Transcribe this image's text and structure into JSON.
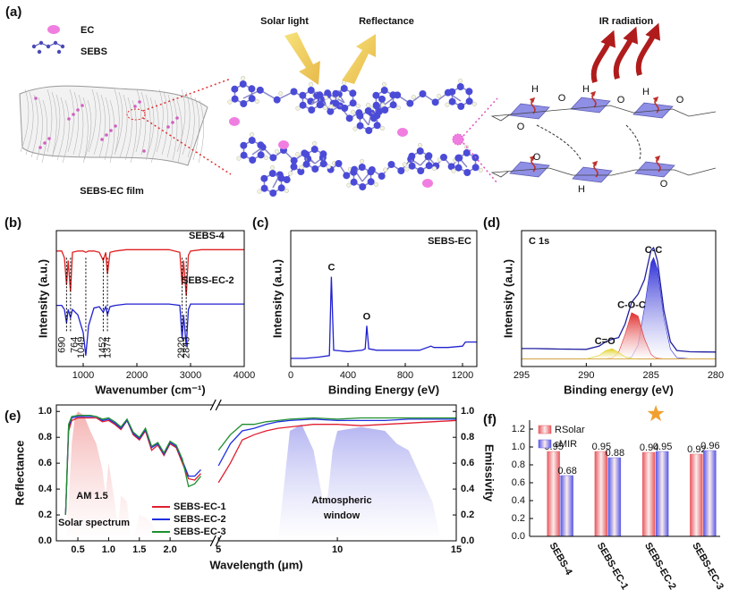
{
  "diagram": {
    "label": "(a)",
    "legend_ec": "EC",
    "legend_sebs": "SEBS",
    "film": "SEBS-EC film",
    "solar_light": "Solar light",
    "reflectance": "Reflectance",
    "ir_radiation": "IR radiation",
    "atoms": [
      "H",
      "O",
      "O",
      "H",
      "O",
      "H",
      "O",
      "O",
      "H",
      "O"
    ]
  },
  "chart_data": [
    {
      "type": "line",
      "label": "(b)",
      "xlabel": "Wavenumber (cm⁻¹)",
      "ylabel": "Intensity (a.u.)",
      "xlim": [
        500,
        4000
      ],
      "xticks": [
        1000,
        2000,
        3000,
        4000
      ],
      "ylim": [
        0,
        1
      ],
      "x": [
        500,
        600,
        650,
        690,
        720,
        764,
        800,
        900,
        1000,
        1049,
        1100,
        1200,
        1300,
        1374,
        1420,
        1452,
        1500,
        1600,
        1800,
        2000,
        2200,
        2400,
        2600,
        2800,
        2843,
        2870,
        2920,
        2960,
        3000,
        3200,
        3500,
        4000
      ],
      "series": [
        {
          "name": "SEBS-4",
          "color": "#e02020",
          "values": [
            0.85,
            0.85,
            0.8,
            0.6,
            0.78,
            0.55,
            0.84,
            0.85,
            0.85,
            0.84,
            0.85,
            0.85,
            0.84,
            0.78,
            0.84,
            0.68,
            0.84,
            0.85,
            0.86,
            0.86,
            0.86,
            0.86,
            0.86,
            0.84,
            0.6,
            0.78,
            0.52,
            0.82,
            0.85,
            0.86,
            0.86,
            0.86
          ]
        },
        {
          "name": "SEBS-EC-2",
          "color": "#2020d0",
          "values": [
            0.45,
            0.45,
            0.42,
            0.32,
            0.42,
            0.36,
            0.42,
            0.38,
            0.25,
            0.08,
            0.3,
            0.43,
            0.44,
            0.4,
            0.44,
            0.38,
            0.44,
            0.45,
            0.46,
            0.46,
            0.46,
            0.46,
            0.46,
            0.45,
            0.2,
            0.38,
            0.15,
            0.42,
            0.46,
            0.46,
            0.46,
            0.46
          ]
        }
      ],
      "peaks": [
        690,
        764,
        1049,
        1374,
        1452,
        2843,
        2920
      ]
    },
    {
      "type": "line",
      "label": "(c)",
      "annotation": "SEBS-EC",
      "xlabel": "Binding  Energy (eV)",
      "ylabel": "Intensity (a.u.)",
      "xlim": [
        0,
        1300
      ],
      "xticks": [
        0,
        400,
        800,
        1200
      ],
      "ylim": [
        0,
        1
      ],
      "x": [
        0,
        100,
        200,
        270,
        284,
        300,
        400,
        500,
        520,
        531,
        545,
        600,
        700,
        800,
        900,
        980,
        1000,
        1100,
        1200,
        1220,
        1300
      ],
      "series": [
        {
          "color": "#2020d0",
          "values": [
            0.06,
            0.06,
            0.07,
            0.08,
            0.66,
            0.12,
            0.11,
            0.12,
            0.13,
            0.3,
            0.13,
            0.12,
            0.12,
            0.12,
            0.12,
            0.15,
            0.14,
            0.14,
            0.15,
            0.18,
            0.18
          ]
        }
      ],
      "peak_labels": [
        {
          "text": "C",
          "x": 284
        },
        {
          "text": "O",
          "x": 531
        }
      ]
    },
    {
      "type": "line",
      "label": "(d)",
      "title": "C 1s",
      "xlabel": "Binding energy (eV)",
      "ylabel": "Intensity (a.u.)",
      "xlim": [
        295,
        280
      ],
      "xticks": [
        295,
        290,
        285,
        280
      ],
      "ylim": [
        -0.06,
        1
      ],
      "x": [
        295,
        294,
        293,
        292,
        291,
        290,
        289,
        288.5,
        288,
        287.5,
        287,
        286.5,
        286,
        285.5,
        285,
        284.8,
        284.5,
        284,
        283.5,
        283,
        282,
        281,
        280
      ],
      "series": [
        {
          "color": "#2020a0",
          "values": [
            0.08,
            0.08,
            0.078,
            0.076,
            0.075,
            0.074,
            0.1,
            0.133,
            0.153,
            0.166,
            0.271,
            0.44,
            0.504,
            0.618,
            0.847,
            0.867,
            0.764,
            0.378,
            0.133,
            0.065,
            0.055,
            0.054,
            0.053
          ]
        },
        {
          "name": "C-C",
          "color": "#2b2bd6",
          "fill": true,
          "values": [
            0,
            0,
            0,
            0,
            0,
            0,
            0,
            0,
            0,
            0,
            0.001,
            0.014,
            0.107,
            0.4,
            0.75,
            0.79,
            0.7,
            0.32,
            0.076,
            0.009,
            0,
            0,
            0
          ]
        },
        {
          "name": "C-O-C",
          "color": "#e03030",
          "fill": true,
          "values": [
            0,
            0,
            0,
            0,
            0,
            0,
            0,
            0.001,
            0.007,
            0.051,
            0.19,
            0.36,
            0.334,
            0.156,
            0.036,
            0.017,
            0.004,
            0,
            0,
            0,
            0,
            0,
            0
          ]
        },
        {
          "name": "C=O",
          "color": "#e0d020",
          "fill": true,
          "values": [
            0,
            0,
            0,
            0,
            0,
            0,
            0.026,
            0.064,
            0.079,
            0.049,
            0.015,
            0.002,
            0,
            0,
            0,
            0,
            0,
            0,
            0,
            0,
            0,
            0,
            0
          ]
        }
      ]
    },
    {
      "type": "line",
      "label": "(e)",
      "xlabel": "Wavelength (μm)",
      "ylabel": "Reflectance",
      "y2label": "Emissivity",
      "xlim": [
        0.15,
        15
      ],
      "xbreak": [
        2.7,
        5
      ],
      "xticks": [
        0.5,
        {
          "value": 1,
          "label": "1.0"
        },
        1.5,
        {
          "value": 2,
          "label": "2.0"
        },
        5,
        10,
        15
      ],
      "ylim": [
        0,
        1.05
      ],
      "yticks": [
        {
          "value": 0,
          "label": "0.0"
        },
        0.2,
        0.4,
        0.6,
        0.8,
        {
          "value": 1,
          "label": "1.0"
        }
      ],
      "y2lim": [
        0,
        1.05
      ],
      "y2ticks": [
        {
          "value": 0,
          "label": "0.0"
        },
        0.2,
        0.4,
        0.6,
        0.8,
        {
          "value": 1,
          "label": "1.0"
        }
      ],
      "x": [
        0.3,
        0.35,
        0.4,
        0.5,
        0.6,
        0.7,
        0.8,
        0.9,
        1.0,
        1.1,
        1.2,
        1.3,
        1.4,
        1.5,
        1.6,
        1.7,
        1.8,
        1.9,
        2.0,
        2.1,
        2.2,
        2.3,
        2.4,
        2.5,
        2.7,
        5,
        5.5,
        6,
        6.5,
        7,
        7.5,
        8,
        9,
        10,
        11,
        12,
        13,
        14,
        15
      ],
      "series": [
        {
          "color": "#f3a5a5",
          "fill": true,
          "x": [
            0.3,
            0.35,
            0.4,
            0.45,
            0.5,
            0.6,
            0.7,
            0.8,
            0.9,
            0.95,
            1.0,
            1.1,
            1.15,
            1.2,
            1.3,
            1.35,
            1.4,
            1.5,
            1.6,
            1.7,
            1.8,
            1.9,
            2.0,
            2.1,
            2.2,
            2.3,
            2.4,
            2.5
          ],
          "values": [
            0,
            0.3,
            0.75,
            0.95,
            1.0,
            0.97,
            0.85,
            0.75,
            0.55,
            0.35,
            0.6,
            0.3,
            0.1,
            0.35,
            0.3,
            0.05,
            0.02,
            0.2,
            0.18,
            0.14,
            0.05,
            0.01,
            0.05,
            0.07,
            0.06,
            0.05,
            0.03,
            0.01
          ]
        },
        {
          "color": "#a8a8f0",
          "fill": true,
          "axis": "y2",
          "x": [
            7.5,
            7.8,
            8,
            8.5,
            9,
            9.4,
            9.6,
            9.8,
            10,
            11,
            12,
            12.5,
            13,
            13.5,
            14,
            14.3,
            14.5
          ],
          "values": [
            0,
            0.5,
            0.85,
            0.9,
            0.7,
            0.3,
            0.35,
            0.7,
            0.85,
            0.88,
            0.85,
            0.75,
            0.7,
            0.5,
            0.3,
            0.05,
            0
          ]
        },
        {
          "name": "SEBS-EC-1",
          "color": "#e01f2f",
          "values": [
            0.2,
            0.85,
            0.93,
            0.95,
            0.95,
            0.95,
            0.95,
            0.92,
            0.93,
            0.9,
            0.86,
            0.93,
            0.82,
            0.78,
            0.85,
            0.7,
            0.74,
            0.66,
            0.75,
            0.72,
            0.6,
            0.48,
            0.47,
            0.52,
            null,
            0.45,
            0.6,
            0.78,
            0.82,
            0.85,
            0.87,
            0.88,
            0.9,
            0.9,
            0.89,
            0.9,
            0.91,
            0.92,
            0.93
          ]
        },
        {
          "name": "SEBS-EC-2",
          "color": "#1f2fe0",
          "values": [
            0.2,
            0.88,
            0.95,
            0.96,
            0.96,
            0.96,
            0.96,
            0.93,
            0.94,
            0.91,
            0.87,
            0.93,
            0.83,
            0.79,
            0.86,
            0.72,
            0.75,
            0.67,
            0.76,
            0.73,
            0.62,
            0.5,
            0.5,
            0.55,
            null,
            0.58,
            0.75,
            0.85,
            0.87,
            0.9,
            0.92,
            0.93,
            0.94,
            0.93,
            0.93,
            0.93,
            0.94,
            0.94,
            0.94
          ]
        },
        {
          "name": "SEBS-EC-3",
          "color": "#1f8f2f",
          "values": [
            0.2,
            0.9,
            0.96,
            0.97,
            0.97,
            0.97,
            0.96,
            0.94,
            0.95,
            0.92,
            0.88,
            0.94,
            0.84,
            0.8,
            0.87,
            0.73,
            0.76,
            0.68,
            0.77,
            0.74,
            0.63,
            0.42,
            0.44,
            0.5,
            null,
            0.7,
            0.82,
            0.9,
            0.9,
            0.92,
            0.93,
            0.94,
            0.95,
            0.94,
            0.95,
            0.95,
            0.95,
            0.95,
            0.95
          ]
        }
      ],
      "annotations": [
        "AM 1.5",
        "Solar spectrum",
        "Atmospheric",
        "window"
      ]
    },
    {
      "type": "bar",
      "label": "(f)",
      "categories": [
        "SEBS-4",
        "SEBS-EC-1",
        "SEBS-EC-2",
        "SEBS-EC-3"
      ],
      "ylim": [
        0,
        1.3
      ],
      "yticks": [
        {
          "value": 0,
          "label": "0.0"
        },
        0.2,
        0.4,
        0.6,
        0.8,
        {
          "value": 1,
          "label": "1.0"
        },
        1.2
      ],
      "series": [
        {
          "name": "RSolar",
          "color": "#e8585f",
          "values": [
            0.95,
            0.95,
            0.94,
            0.92
          ]
        },
        {
          "name": "εMIR",
          "color": "#5858e8",
          "values": [
            0.68,
            0.88,
            0.95,
            0.96
          ]
        }
      ]
    }
  ]
}
